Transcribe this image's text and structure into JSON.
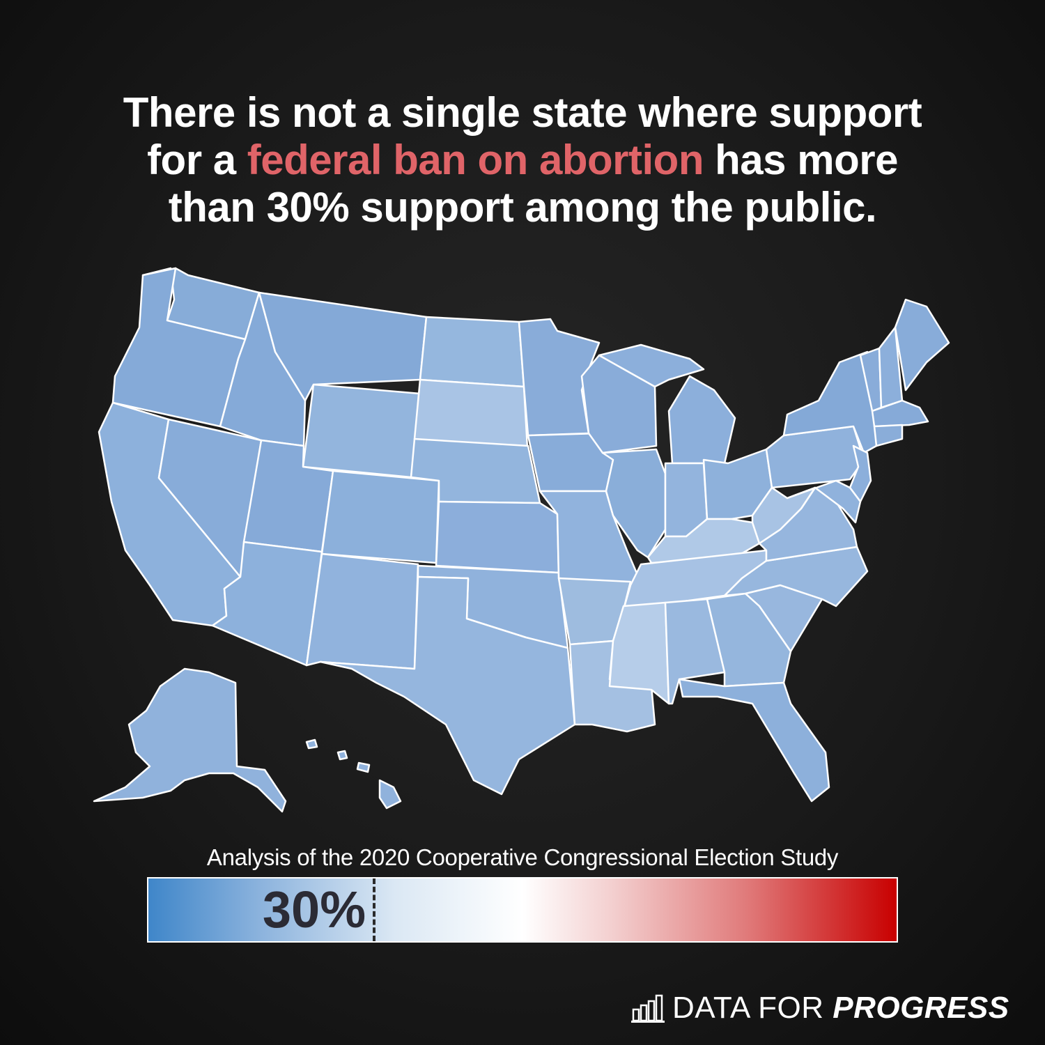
{
  "headline": {
    "line1": "There is not a single state where support",
    "line2_pre": "for a ",
    "line2_accent": "federal ban on abortion",
    "line2_post": " has more",
    "line3": "than 30% support among the public."
  },
  "source": "Analysis of the 2020 Cooperative Congressional Election Study",
  "scale": {
    "marker_label": "30%",
    "marker_value": 0.3,
    "colors": {
      "low": "#3f86c9",
      "mid": "#ffffff",
      "high": "#c80000"
    }
  },
  "brand": {
    "prefix": "DATA FOR ",
    "name": "PROGRESS"
  },
  "colors": {
    "accent": "#e06468",
    "state_fill": "#8eb1da",
    "lighter_fill": "#b0c8e6"
  }
}
